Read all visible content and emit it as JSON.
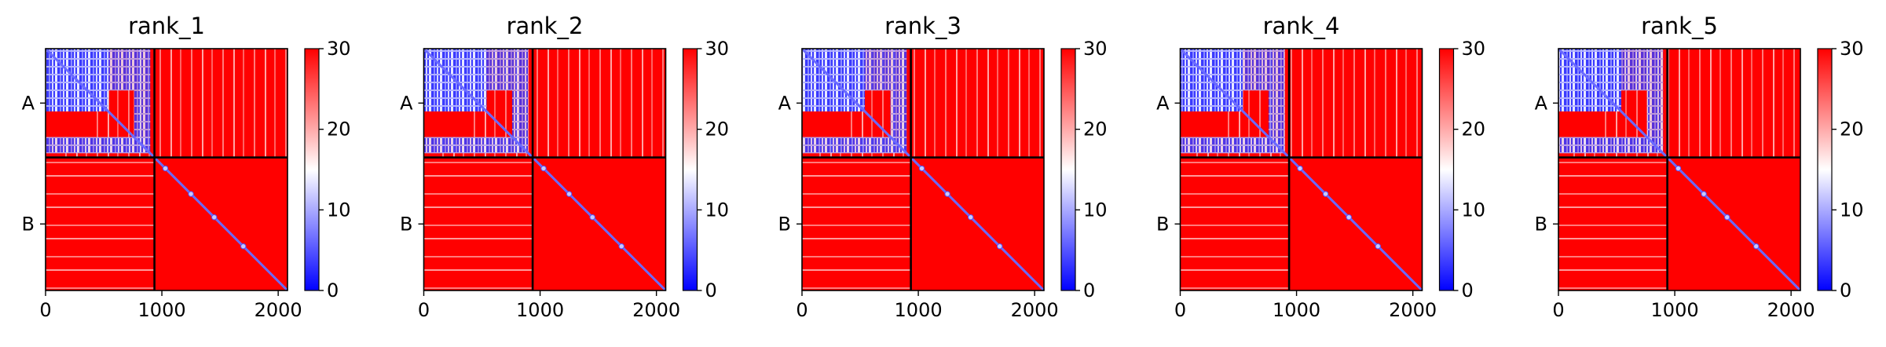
{
  "figure": {
    "panel_titles": [
      "rank_1",
      "rank_2",
      "rank_3",
      "rank_4",
      "rank_5"
    ],
    "y_tick_labels": [
      "A",
      "B"
    ],
    "x_tick_labels": [
      "0",
      "1000",
      "2000"
    ],
    "colorbar_tick_labels": [
      "0",
      "10",
      "20",
      "30"
    ]
  },
  "chart_data": [
    {
      "type": "heatmap",
      "title": "rank_1",
      "x_ticks": [
        0,
        1000,
        2000
      ],
      "xlim": [
        0,
        2080
      ],
      "y_ticks": [
        "A",
        "B"
      ],
      "chain_boundary": 936,
      "chains": [
        {
          "name": "A",
          "start": 0,
          "end": 936
        },
        {
          "name": "B",
          "start": 936,
          "end": 2080
        }
      ],
      "colorbar": {
        "min": 0,
        "max": 30,
        "ticks": [
          0,
          10,
          20,
          30
        ],
        "colormap": "bwr",
        "colors": [
          "#0000ff",
          "#ffffff",
          "#ff0000"
        ]
      },
      "grid": false
    },
    {
      "type": "heatmap",
      "title": "rank_2",
      "x_ticks": [
        0,
        1000,
        2000
      ],
      "xlim": [
        0,
        2080
      ],
      "y_ticks": [
        "A",
        "B"
      ],
      "chain_boundary": 936,
      "chains": [
        {
          "name": "A",
          "start": 0,
          "end": 936
        },
        {
          "name": "B",
          "start": 936,
          "end": 2080
        }
      ],
      "colorbar": {
        "min": 0,
        "max": 30,
        "ticks": [
          0,
          10,
          20,
          30
        ],
        "colormap": "bwr",
        "colors": [
          "#0000ff",
          "#ffffff",
          "#ff0000"
        ]
      },
      "grid": false
    },
    {
      "type": "heatmap",
      "title": "rank_3",
      "x_ticks": [
        0,
        1000,
        2000
      ],
      "xlim": [
        0,
        2080
      ],
      "y_ticks": [
        "A",
        "B"
      ],
      "chain_boundary": 936,
      "chains": [
        {
          "name": "A",
          "start": 0,
          "end": 936
        },
        {
          "name": "B",
          "start": 936,
          "end": 2080
        }
      ],
      "colorbar": {
        "min": 0,
        "max": 30,
        "ticks": [
          0,
          10,
          20,
          30
        ],
        "colormap": "bwr",
        "colors": [
          "#0000ff",
          "#ffffff",
          "#ff0000"
        ]
      },
      "grid": false
    },
    {
      "type": "heatmap",
      "title": "rank_4",
      "x_ticks": [
        0,
        1000,
        2000
      ],
      "xlim": [
        0,
        2080
      ],
      "y_ticks": [
        "A",
        "B"
      ],
      "chain_boundary": 936,
      "chains": [
        {
          "name": "A",
          "start": 0,
          "end": 936
        },
        {
          "name": "B",
          "start": 936,
          "end": 2080
        }
      ],
      "colorbar": {
        "min": 0,
        "max": 30,
        "ticks": [
          0,
          10,
          20,
          30
        ],
        "colormap": "bwr",
        "colors": [
          "#0000ff",
          "#ffffff",
          "#ff0000"
        ]
      },
      "grid": false
    },
    {
      "type": "heatmap",
      "title": "rank_5",
      "x_ticks": [
        0,
        1000,
        2000
      ],
      "xlim": [
        0,
        2080
      ],
      "y_ticks": [
        "A",
        "B"
      ],
      "chain_boundary": 936,
      "chains": [
        {
          "name": "A",
          "start": 0,
          "end": 936
        },
        {
          "name": "B",
          "start": 936,
          "end": 2080
        }
      ],
      "colorbar": {
        "min": 0,
        "max": 30,
        "ticks": [
          0,
          10,
          20,
          30
        ],
        "colormap": "bwr",
        "colors": [
          "#0000ff",
          "#ffffff",
          "#ff0000"
        ]
      },
      "grid": false
    }
  ]
}
